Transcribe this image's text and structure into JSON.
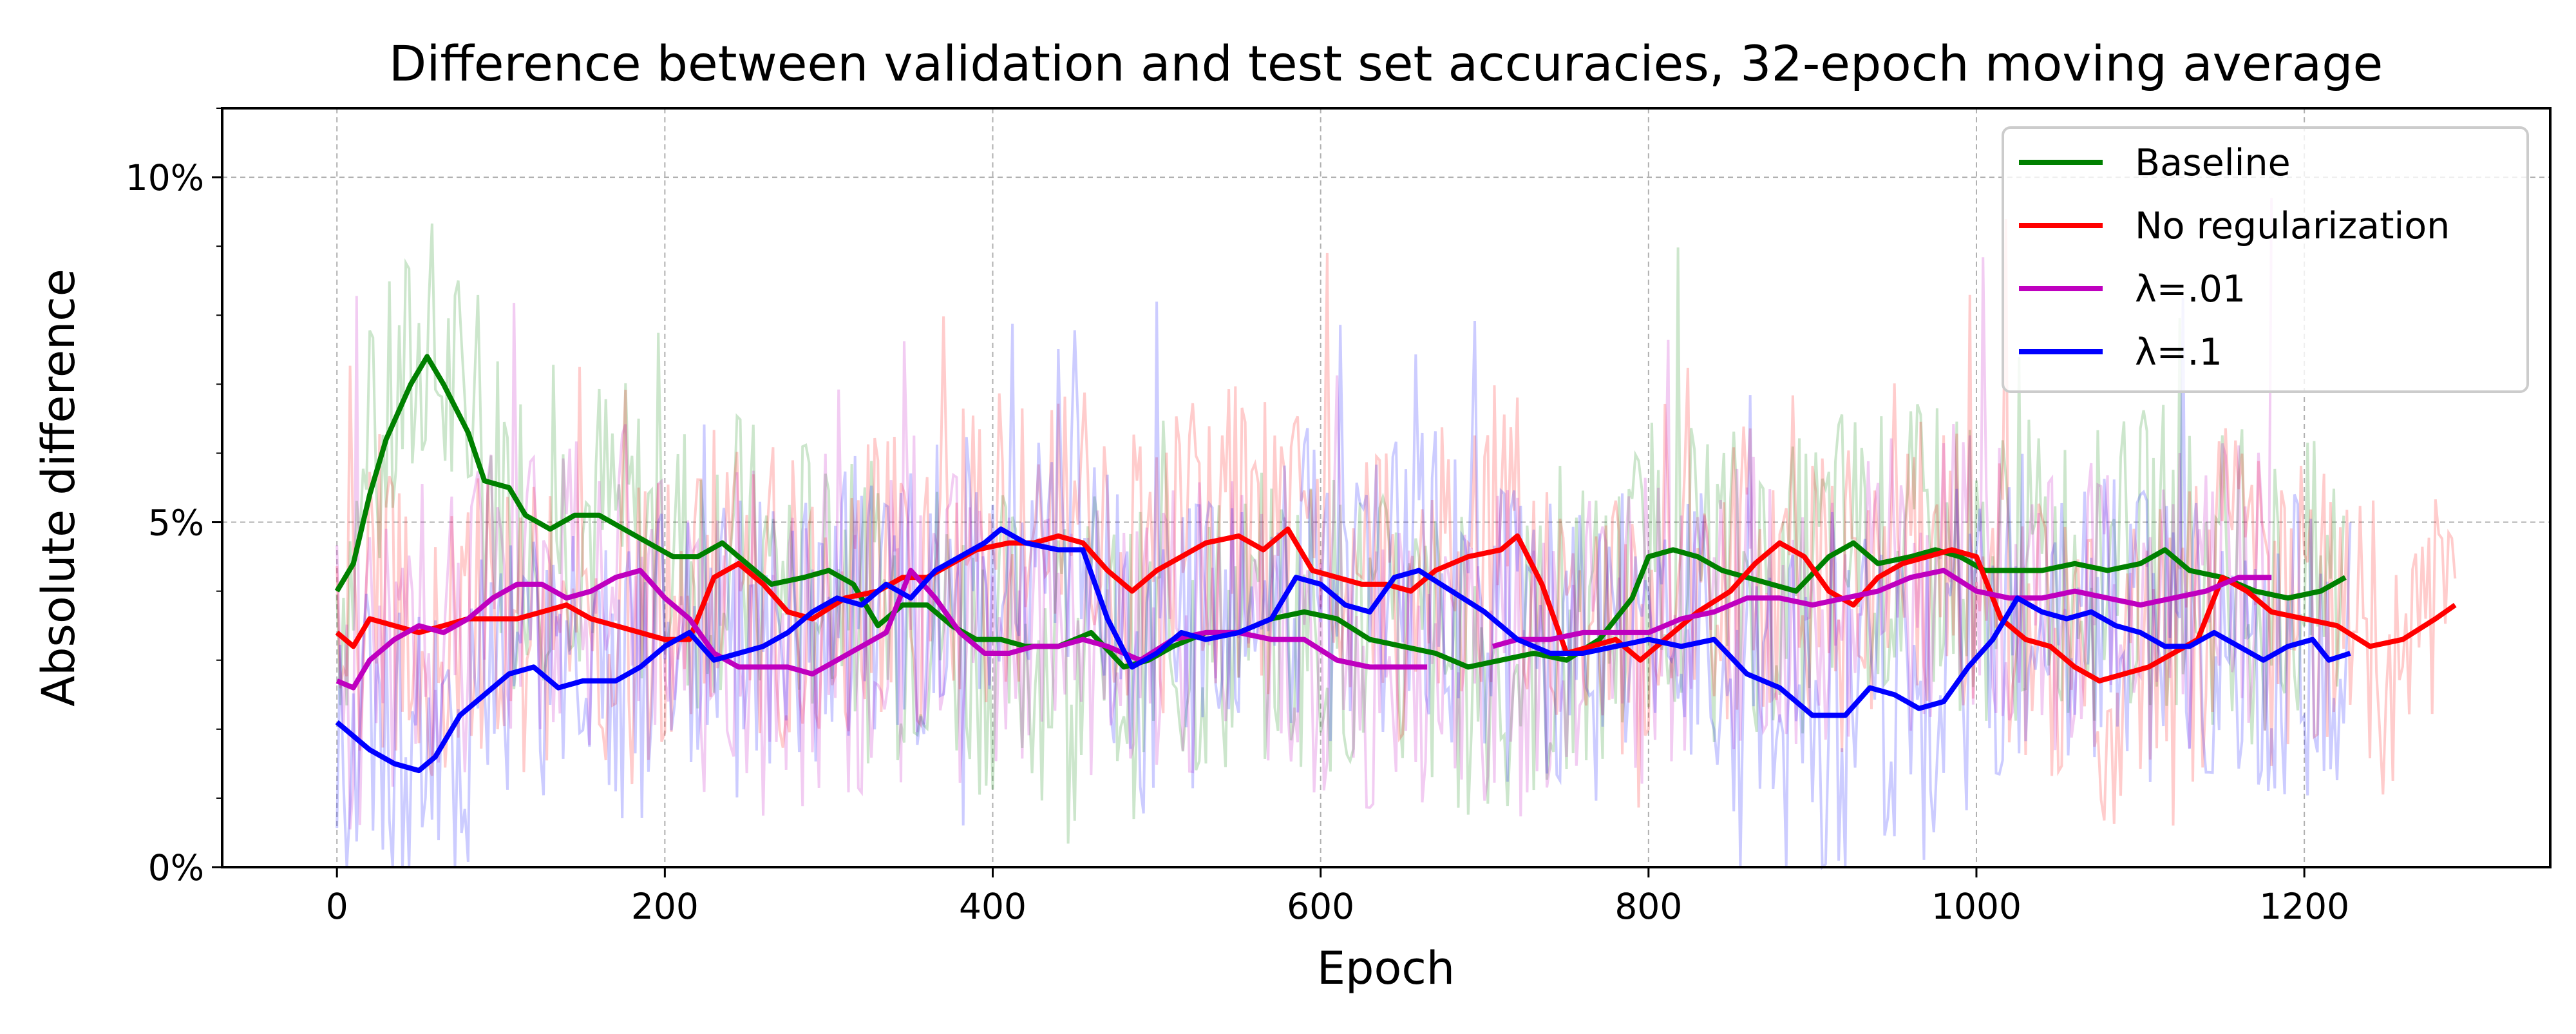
{
  "chart_data": {
    "type": "line",
    "title": "Difference between validation and test set accuracies, 32-epoch moving average",
    "xlabel": "Epoch",
    "ylabel": "Absolute difference",
    "xlim": [
      -70,
      1350
    ],
    "ylim": [
      0,
      0.11
    ],
    "x_ticks": [
      0,
      200,
      400,
      600,
      800,
      1000,
      1200
    ],
    "x_tick_labels": [
      "0",
      "200",
      "400",
      "600",
      "800",
      "1000",
      "1200"
    ],
    "y_ticks": [
      0,
      0.05,
      0.1
    ],
    "y_tick_labels": [
      "0%",
      "5%",
      "10%"
    ],
    "grid": true,
    "legend_position": "top-right",
    "raw_series_alpha": 0.2,
    "series": [
      {
        "name": "Baseline",
        "color": "#008000",
        "points": [
          [
            0,
            0.04
          ],
          [
            10,
            0.044
          ],
          [
            20,
            0.054
          ],
          [
            30,
            0.062
          ],
          [
            45,
            0.07
          ],
          [
            55,
            0.074
          ],
          [
            65,
            0.07
          ],
          [
            80,
            0.063
          ],
          [
            90,
            0.056
          ],
          [
            105,
            0.055
          ],
          [
            115,
            0.051
          ],
          [
            130,
            0.049
          ],
          [
            145,
            0.051
          ],
          [
            160,
            0.051
          ],
          [
            175,
            0.049
          ],
          [
            190,
            0.047
          ],
          [
            205,
            0.045
          ],
          [
            220,
            0.045
          ],
          [
            235,
            0.047
          ],
          [
            250,
            0.044
          ],
          [
            265,
            0.041
          ],
          [
            285,
            0.042
          ],
          [
            300,
            0.043
          ],
          [
            315,
            0.041
          ],
          [
            330,
            0.035
          ],
          [
            345,
            0.038
          ],
          [
            360,
            0.038
          ],
          [
            375,
            0.035
          ],
          [
            390,
            0.033
          ],
          [
            405,
            0.033
          ],
          [
            420,
            0.032
          ],
          [
            440,
            0.032
          ],
          [
            460,
            0.034
          ],
          [
            480,
            0.029
          ],
          [
            495,
            0.03
          ],
          [
            510,
            0.032
          ],
          [
            530,
            0.034
          ],
          [
            550,
            0.034
          ],
          [
            570,
            0.036
          ],
          [
            590,
            0.037
          ],
          [
            610,
            0.036
          ],
          [
            630,
            0.033
          ],
          [
            650,
            0.032
          ],
          [
            670,
            0.031
          ],
          [
            690,
            0.029
          ],
          [
            710,
            0.03
          ],
          [
            730,
            0.031
          ],
          [
            750,
            0.03
          ],
          [
            770,
            0.033
          ],
          [
            790,
            0.039
          ],
          [
            800,
            0.045
          ],
          [
            815,
            0.046
          ],
          [
            830,
            0.045
          ],
          [
            845,
            0.043
          ],
          [
            860,
            0.042
          ],
          [
            875,
            0.041
          ],
          [
            890,
            0.04
          ],
          [
            910,
            0.045
          ],
          [
            925,
            0.047
          ],
          [
            940,
            0.044
          ],
          [
            960,
            0.045
          ],
          [
            975,
            0.046
          ],
          [
            990,
            0.045
          ],
          [
            1005,
            0.043
          ],
          [
            1020,
            0.043
          ],
          [
            1040,
            0.043
          ],
          [
            1060,
            0.044
          ],
          [
            1080,
            0.043
          ],
          [
            1100,
            0.044
          ],
          [
            1115,
            0.046
          ],
          [
            1130,
            0.043
          ],
          [
            1150,
            0.042
          ],
          [
            1170,
            0.04
          ],
          [
            1190,
            0.039
          ],
          [
            1210,
            0.04
          ],
          [
            1225,
            0.042
          ]
        ]
      },
      {
        "name": "No regularization",
        "color": "#ff0000",
        "points": [
          [
            0,
            0.034
          ],
          [
            10,
            0.032
          ],
          [
            20,
            0.036
          ],
          [
            35,
            0.035
          ],
          [
            50,
            0.034
          ],
          [
            65,
            0.035
          ],
          [
            80,
            0.036
          ],
          [
            95,
            0.036
          ],
          [
            110,
            0.036
          ],
          [
            125,
            0.037
          ],
          [
            140,
            0.038
          ],
          [
            155,
            0.036
          ],
          [
            170,
            0.035
          ],
          [
            185,
            0.034
          ],
          [
            200,
            0.033
          ],
          [
            215,
            0.033
          ],
          [
            230,
            0.042
          ],
          [
            245,
            0.044
          ],
          [
            260,
            0.041
          ],
          [
            275,
            0.037
          ],
          [
            290,
            0.036
          ],
          [
            310,
            0.039
          ],
          [
            330,
            0.04
          ],
          [
            345,
            0.042
          ],
          [
            360,
            0.042
          ],
          [
            375,
            0.044
          ],
          [
            390,
            0.046
          ],
          [
            410,
            0.047
          ],
          [
            425,
            0.047
          ],
          [
            440,
            0.048
          ],
          [
            455,
            0.047
          ],
          [
            470,
            0.043
          ],
          [
            485,
            0.04
          ],
          [
            500,
            0.043
          ],
          [
            515,
            0.045
          ],
          [
            530,
            0.047
          ],
          [
            550,
            0.048
          ],
          [
            565,
            0.046
          ],
          [
            580,
            0.049
          ],
          [
            595,
            0.043
          ],
          [
            610,
            0.042
          ],
          [
            625,
            0.041
          ],
          [
            640,
            0.041
          ],
          [
            655,
            0.04
          ],
          [
            670,
            0.043
          ],
          [
            690,
            0.045
          ],
          [
            710,
            0.046
          ],
          [
            720,
            0.048
          ],
          [
            735,
            0.041
          ],
          [
            750,
            0.031
          ],
          [
            765,
            0.032
          ],
          [
            780,
            0.033
          ],
          [
            795,
            0.03
          ],
          [
            810,
            0.033
          ],
          [
            830,
            0.037
          ],
          [
            850,
            0.04
          ],
          [
            865,
            0.044
          ],
          [
            880,
            0.047
          ],
          [
            895,
            0.045
          ],
          [
            910,
            0.04
          ],
          [
            925,
            0.038
          ],
          [
            940,
            0.042
          ],
          [
            955,
            0.044
          ],
          [
            970,
            0.045
          ],
          [
            985,
            0.046
          ],
          [
            1000,
            0.045
          ],
          [
            1015,
            0.036
          ],
          [
            1030,
            0.033
          ],
          [
            1045,
            0.032
          ],
          [
            1060,
            0.029
          ],
          [
            1075,
            0.027
          ],
          [
            1090,
            0.028
          ],
          [
            1105,
            0.029
          ],
          [
            1120,
            0.031
          ],
          [
            1135,
            0.033
          ],
          [
            1150,
            0.042
          ],
          [
            1165,
            0.04
          ],
          [
            1180,
            0.037
          ],
          [
            1200,
            0.036
          ],
          [
            1220,
            0.035
          ],
          [
            1240,
            0.032
          ],
          [
            1260,
            0.033
          ],
          [
            1280,
            0.036
          ],
          [
            1292,
            0.038
          ]
        ]
      },
      {
        "name": "λ=.01",
        "color": "#bf00bf",
        "points": [
          [
            0,
            0.027
          ],
          [
            10,
            0.026
          ],
          [
            20,
            0.03
          ],
          [
            35,
            0.033
          ],
          [
            50,
            0.035
          ],
          [
            65,
            0.034
          ],
          [
            80,
            0.036
          ],
          [
            95,
            0.039
          ],
          [
            110,
            0.041
          ],
          [
            125,
            0.041
          ],
          [
            140,
            0.039
          ],
          [
            155,
            0.04
          ],
          [
            170,
            0.042
          ],
          [
            185,
            0.043
          ],
          [
            200,
            0.039
          ],
          [
            215,
            0.036
          ],
          [
            230,
            0.031
          ],
          [
            245,
            0.029
          ],
          [
            260,
            0.029
          ],
          [
            275,
            0.029
          ],
          [
            290,
            0.028
          ],
          [
            305,
            0.03
          ],
          [
            320,
            0.032
          ],
          [
            335,
            0.034
          ],
          [
            350,
            0.043
          ],
          [
            365,
            0.039
          ],
          [
            380,
            0.034
          ],
          [
            395,
            0.031
          ],
          [
            410,
            0.031
          ],
          [
            425,
            0.032
          ],
          [
            440,
            0.032
          ],
          [
            455,
            0.033
          ],
          [
            470,
            0.032
          ],
          [
            490,
            0.03
          ],
          [
            510,
            0.033
          ],
          [
            530,
            0.034
          ],
          [
            550,
            0.034
          ],
          [
            570,
            0.033
          ],
          [
            590,
            0.033
          ],
          [
            610,
            0.03
          ],
          [
            630,
            0.029
          ],
          [
            650,
            0.029
          ],
          [
            665,
            0.029
          ]
        ],
        "points_2": [
          [
            705,
            0.032
          ],
          [
            720,
            0.033
          ],
          [
            740,
            0.033
          ],
          [
            760,
            0.034
          ],
          [
            780,
            0.034
          ],
          [
            800,
            0.034
          ],
          [
            820,
            0.036
          ],
          [
            840,
            0.037
          ],
          [
            860,
            0.039
          ],
          [
            880,
            0.039
          ],
          [
            900,
            0.038
          ],
          [
            920,
            0.039
          ],
          [
            940,
            0.04
          ],
          [
            960,
            0.042
          ],
          [
            980,
            0.043
          ],
          [
            1000,
            0.04
          ],
          [
            1020,
            0.039
          ],
          [
            1040,
            0.039
          ],
          [
            1060,
            0.04
          ],
          [
            1080,
            0.039
          ],
          [
            1100,
            0.038
          ],
          [
            1120,
            0.039
          ],
          [
            1140,
            0.04
          ],
          [
            1160,
            0.042
          ],
          [
            1180,
            0.042
          ]
        ]
      },
      {
        "name": "λ=.1",
        "color": "#0000ff",
        "points": [
          [
            0,
            0.021
          ],
          [
            10,
            0.019
          ],
          [
            20,
            0.017
          ],
          [
            35,
            0.015
          ],
          [
            50,
            0.014
          ],
          [
            60,
            0.016
          ],
          [
            75,
            0.022
          ],
          [
            90,
            0.025
          ],
          [
            105,
            0.028
          ],
          [
            120,
            0.029
          ],
          [
            135,
            0.026
          ],
          [
            150,
            0.027
          ],
          [
            170,
            0.027
          ],
          [
            185,
            0.029
          ],
          [
            200,
            0.032
          ],
          [
            215,
            0.034
          ],
          [
            230,
            0.03
          ],
          [
            245,
            0.031
          ],
          [
            260,
            0.032
          ],
          [
            275,
            0.034
          ],
          [
            290,
            0.037
          ],
          [
            305,
            0.039
          ],
          [
            320,
            0.038
          ],
          [
            335,
            0.041
          ],
          [
            350,
            0.039
          ],
          [
            365,
            0.043
          ],
          [
            380,
            0.045
          ],
          [
            395,
            0.047
          ],
          [
            405,
            0.049
          ],
          [
            420,
            0.047
          ],
          [
            440,
            0.046
          ],
          [
            455,
            0.046
          ],
          [
            470,
            0.036
          ],
          [
            485,
            0.029
          ],
          [
            500,
            0.031
          ],
          [
            515,
            0.034
          ],
          [
            530,
            0.033
          ],
          [
            550,
            0.034
          ],
          [
            570,
            0.036
          ],
          [
            585,
            0.042
          ],
          [
            600,
            0.041
          ],
          [
            615,
            0.038
          ],
          [
            630,
            0.037
          ],
          [
            645,
            0.042
          ],
          [
            660,
            0.043
          ],
          [
            680,
            0.04
          ],
          [
            700,
            0.037
          ],
          [
            720,
            0.033
          ],
          [
            740,
            0.031
          ],
          [
            760,
            0.031
          ],
          [
            780,
            0.032
          ],
          [
            800,
            0.033
          ],
          [
            820,
            0.032
          ],
          [
            840,
            0.033
          ],
          [
            860,
            0.028
          ],
          [
            880,
            0.026
          ],
          [
            900,
            0.022
          ],
          [
            920,
            0.022
          ],
          [
            935,
            0.026
          ],
          [
            950,
            0.025
          ],
          [
            965,
            0.023
          ],
          [
            980,
            0.024
          ],
          [
            995,
            0.029
          ],
          [
            1010,
            0.033
          ],
          [
            1025,
            0.039
          ],
          [
            1040,
            0.037
          ],
          [
            1055,
            0.036
          ],
          [
            1070,
            0.037
          ],
          [
            1085,
            0.035
          ],
          [
            1100,
            0.034
          ],
          [
            1115,
            0.032
          ],
          [
            1130,
            0.032
          ],
          [
            1145,
            0.034
          ],
          [
            1160,
            0.032
          ],
          [
            1175,
            0.03
          ],
          [
            1190,
            0.032
          ],
          [
            1205,
            0.033
          ],
          [
            1215,
            0.03
          ],
          [
            1228,
            0.031
          ]
        ]
      }
    ]
  }
}
